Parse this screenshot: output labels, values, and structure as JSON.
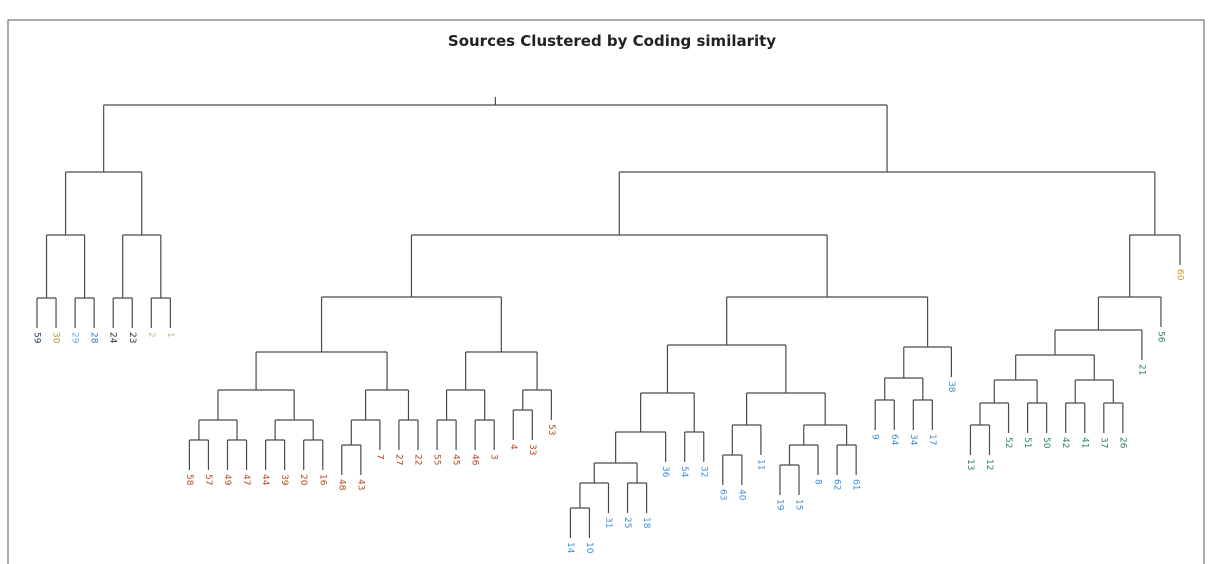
{
  "title": "Sources Clustered by Coding similarity",
  "tree": {
    "h": 415,
    "children": [
      {
        "h": 348,
        "children": [
          {
            "h": 285,
            "children": [
              {
                "h": 222,
                "children": [
                  {
                    "label": "59",
                    "color": "#2a3b5c"
                  },
                  {
                    "label": "30",
                    "color": "#a89e22"
                  }
                ]
              },
              {
                "h": 222,
                "children": [
                  {
                    "label": "29",
                    "color": "#5aaee8"
                  },
                  {
                    "label": "28",
                    "color": "#3a6ed0"
                  }
                ]
              }
            ]
          },
          {
            "h": 285,
            "children": [
              {
                "h": 222,
                "children": [
                  {
                    "label": "24",
                    "color": "#333333"
                  },
                  {
                    "label": "23",
                    "color": "#333333"
                  }
                ]
              },
              {
                "h": 222,
                "children": [
                  {
                    "label": "2",
                    "color": "#c8b890"
                  },
                  {
                    "label": "1",
                    "color": "#c8b890"
                  }
                ]
              }
            ]
          }
        ]
      },
      {
        "h": 348,
        "children": [
          {
            "h": 285,
            "children": [
              {
                "h": 223,
                "children": [
                  {
                    "h": 168,
                    "children": [
                      {
                        "h": 130,
                        "children": [
                          {
                            "h": 100,
                            "children": [
                              {
                                "h": 80,
                                "children": [
                                  {
                                    "label": "58",
                                    "color": "#b5491e"
                                  },
                                  {
                                    "label": "57",
                                    "color": "#b5491e"
                                  }
                                ]
                              },
                              {
                                "h": 80,
                                "children": [
                                  {
                                    "label": "49",
                                    "color": "#b5491e"
                                  },
                                  {
                                    "label": "47",
                                    "color": "#b5491e"
                                  }
                                ]
                              }
                            ]
                          },
                          {
                            "h": 100,
                            "children": [
                              {
                                "h": 80,
                                "children": [
                                  {
                                    "label": "44",
                                    "color": "#b5491e"
                                  },
                                  {
                                    "label": "39",
                                    "color": "#b5491e"
                                  }
                                ]
                              },
                              {
                                "h": 80,
                                "children": [
                                  {
                                    "label": "20",
                                    "color": "#b5491e"
                                  },
                                  {
                                    "label": "16",
                                    "color": "#b5491e"
                                  }
                                ]
                              }
                            ]
                          }
                        ]
                      },
                      {
                        "h": 130,
                        "children": [
                          {
                            "h": 100,
                            "children": [
                              {
                                "h": 75,
                                "children": [
                                  {
                                    "label": "48",
                                    "color": "#b5491e"
                                  },
                                  {
                                    "label": "43",
                                    "color": "#b5491e"
                                  }
                                ]
                              },
                              {
                                "label": "7",
                                "color": "#b5491e"
                              }
                            ]
                          },
                          {
                            "h": 100,
                            "children": [
                              {
                                "label": "27",
                                "color": "#b5491e"
                              },
                              {
                                "label": "22",
                                "color": "#b5491e"
                              }
                            ]
                          }
                        ]
                      }
                    ]
                  },
                  {
                    "h": 168,
                    "children": [
                      {
                        "h": 130,
                        "children": [
                          {
                            "h": 100,
                            "children": [
                              {
                                "label": "55",
                                "color": "#b5491e"
                              },
                              {
                                "label": "45",
                                "color": "#b5491e"
                              }
                            ]
                          },
                          {
                            "h": 100,
                            "children": [
                              {
                                "label": "46",
                                "color": "#b5491e"
                              },
                              {
                                "label": "3",
                                "color": "#b5491e"
                              }
                            ]
                          }
                        ]
                      },
                      {
                        "h": 130,
                        "children": [
                          {
                            "h": 110,
                            "children": [
                              {
                                "label": "4",
                                "color": "#b5491e"
                              },
                              {
                                "label": "33",
                                "color": "#b5491e"
                              }
                            ]
                          },
                          {
                            "label": "53",
                            "color": "#b5491e"
                          }
                        ]
                      }
                    ]
                  }
                ]
              },
              {
                "h": 223,
                "children": [
                  {
                    "h": 175,
                    "children": [
                      {
                        "h": 127,
                        "children": [
                          {
                            "h": 88,
                            "children": [
                              {
                                "h": 57,
                                "children": [
                                  {
                                    "h": 37,
                                    "children": [
                                      {
                                        "h": 12,
                                        "children": [
                                          {
                                            "label": "14",
                                            "color": "#3c8fd9"
                                          },
                                          {
                                            "label": "10",
                                            "color": "#3c8fd9"
                                          }
                                        ]
                                      },
                                      {
                                        "label": "31",
                                        "color": "#3c8fd9"
                                      }
                                    ]
                                  },
                                  {
                                    "h": 37,
                                    "children": [
                                      {
                                        "label": "25",
                                        "color": "#3c8fd9"
                                      },
                                      {
                                        "label": "18",
                                        "color": "#3c8fd9"
                                      }
                                    ]
                                  }
                                ]
                              },
                              {
                                "label": "36",
                                "color": "#3c8fd9"
                              }
                            ]
                          },
                          {
                            "h": 88,
                            "children": [
                              {
                                "label": "54",
                                "color": "#3c8fd9"
                              },
                              {
                                "label": "32",
                                "color": "#3c8fd9"
                              }
                            ]
                          }
                        ]
                      },
                      {
                        "h": 127,
                        "children": [
                          {
                            "h": 95,
                            "children": [
                              {
                                "h": 65,
                                "children": [
                                  {
                                    "label": "63",
                                    "color": "#3c8fd9"
                                  },
                                  {
                                    "label": "40",
                                    "color": "#3c8fd9"
                                  }
                                ]
                              },
                              {
                                "label": "11",
                                "color": "#3c8fd9"
                              }
                            ]
                          },
                          {
                            "h": 95,
                            "children": [
                              {
                                "h": 75,
                                "children": [
                                  {
                                    "h": 55,
                                    "children": [
                                      {
                                        "label": "19",
                                        "color": "#3c8fd9"
                                      },
                                      {
                                        "label": "15",
                                        "color": "#3c8fd9"
                                      }
                                    ]
                                  },
                                  {
                                    "label": "8",
                                    "color": "#3c8fd9"
                                  }
                                ]
                              },
                              {
                                "h": 75,
                                "children": [
                                  {
                                    "label": "62",
                                    "color": "#3c8fd9"
                                  },
                                  {
                                    "label": "61",
                                    "color": "#3c8fd9"
                                  }
                                ]
                              }
                            ]
                          }
                        ]
                      }
                    ]
                  },
                  {
                    "h": 173,
                    "children": [
                      {
                        "h": 142,
                        "children": [
                          {
                            "h": 120,
                            "children": [
                              {
                                "label": "9",
                                "color": "#3c8fd9"
                              },
                              {
                                "label": "64",
                                "color": "#3c8fd9"
                              }
                            ]
                          },
                          {
                            "h": 120,
                            "children": [
                              {
                                "label": "34",
                                "color": "#3c8fd9"
                              },
                              {
                                "label": "17",
                                "color": "#3c8fd9"
                              }
                            ]
                          }
                        ]
                      },
                      {
                        "label": "38",
                        "color": "#3c8fd9"
                      }
                    ]
                  }
                ]
              }
            ]
          },
          {
            "h": 285,
            "children": [
              {
                "h": 223,
                "children": [
                  {
                    "h": 190,
                    "children": [
                      {
                        "h": 165,
                        "children": [
                          {
                            "h": 140,
                            "children": [
                              {
                                "h": 117,
                                "children": [
                                  {
                                    "h": 95,
                                    "children": [
                                      {
                                        "label": "13",
                                        "color": "#2b7f6c"
                                      },
                                      {
                                        "label": "12",
                                        "color": "#2b7f6c"
                                      }
                                    ]
                                  },
                                  {
                                    "label": "52",
                                    "color": "#2b7f6c"
                                  }
                                ]
                              },
                              {
                                "h": 117,
                                "children": [
                                  {
                                    "label": "51",
                                    "color": "#2b7f6c"
                                  },
                                  {
                                    "label": "50",
                                    "color": "#2b7f6c"
                                  }
                                ]
                              }
                            ]
                          },
                          {
                            "h": 140,
                            "children": [
                              {
                                "h": 117,
                                "children": [
                                  {
                                    "label": "42",
                                    "color": "#2b7f6c"
                                  },
                                  {
                                    "label": "41",
                                    "color": "#2b7f6c"
                                  }
                                ]
                              },
                              {
                                "h": 117,
                                "children": [
                                  {
                                    "label": "37",
                                    "color": "#2b7f6c"
                                  },
                                  {
                                    "label": "26",
                                    "color": "#2b7f6c"
                                  }
                                ]
                              }
                            ]
                          }
                        ]
                      },
                      {
                        "label": "21",
                        "color": "#2b7f6c"
                      }
                    ]
                  },
                  {
                    "label": "56",
                    "color": "#2b7f6c"
                  }
                ]
              },
              {
                "label": "60",
                "color": "#c8961e"
              }
            ]
          }
        ]
      }
    ]
  }
}
